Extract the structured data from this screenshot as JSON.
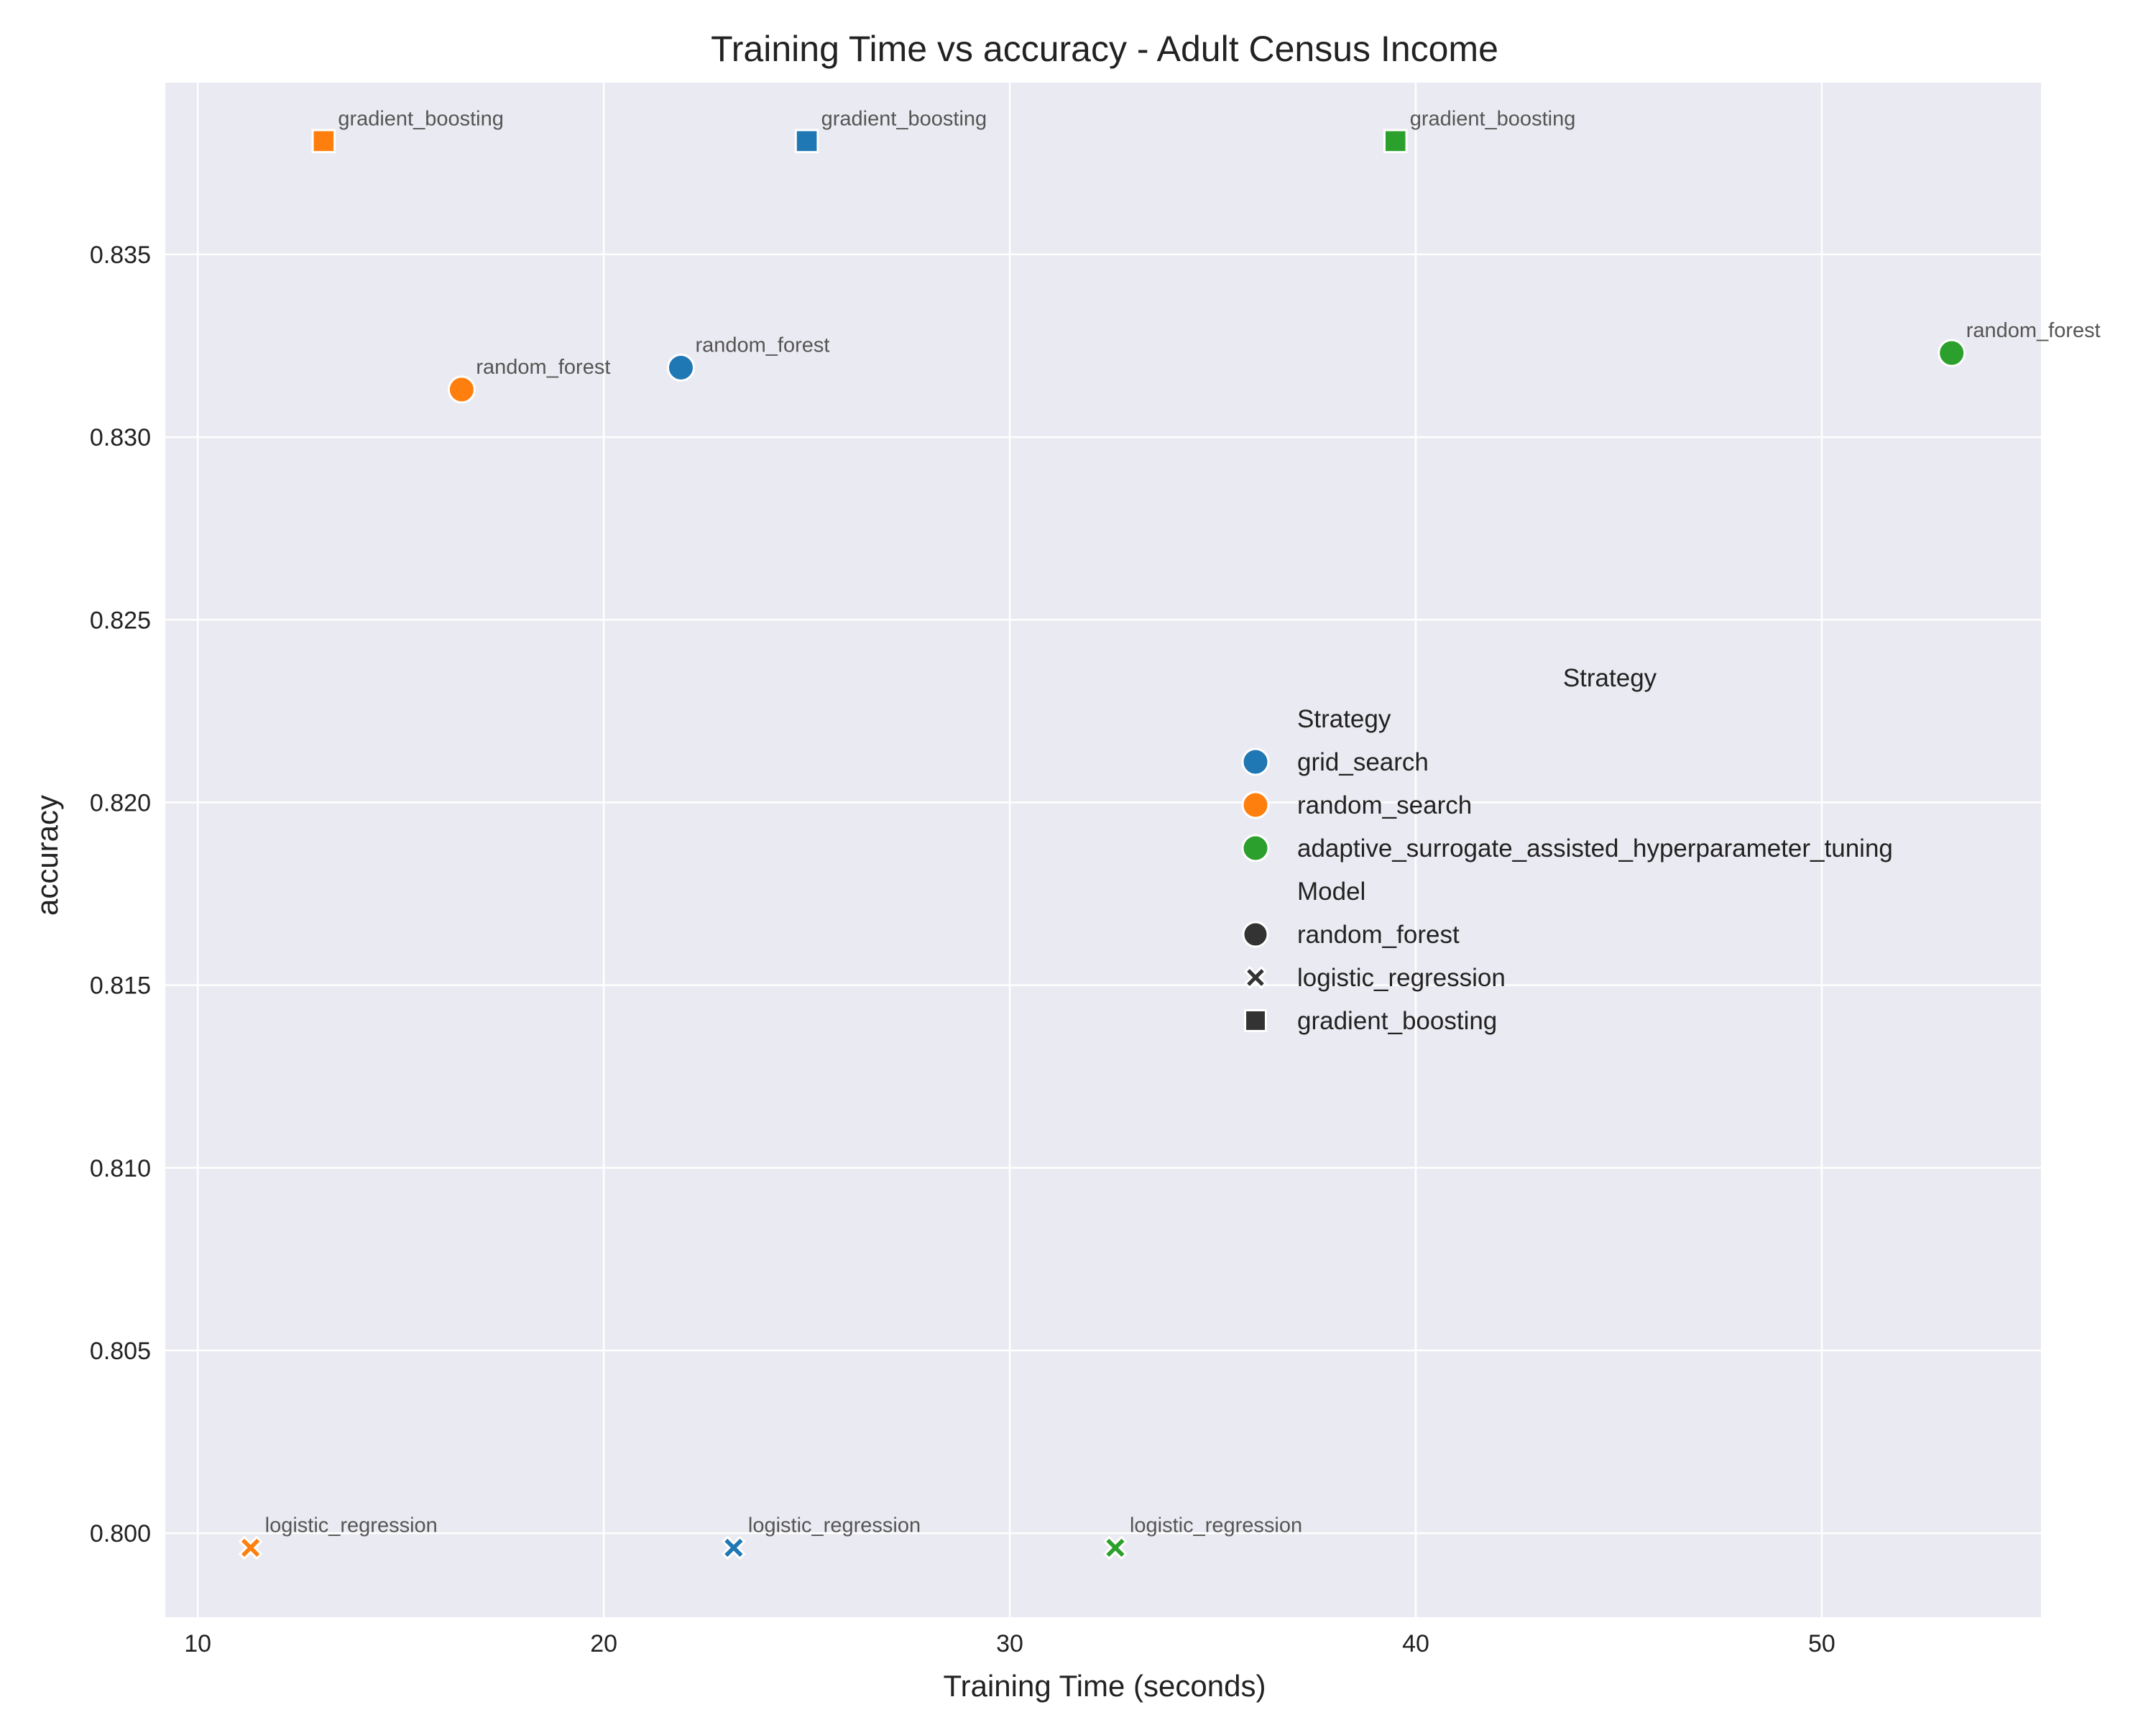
{
  "chart_data": {
    "type": "scatter",
    "title": "Training Time vs accuracy - Adult Census Income",
    "xlabel": "Training Time (seconds)",
    "ylabel": "accuracy",
    "xlim": [
      9.2,
      55.4
    ],
    "ylim": [
      0.7977,
      0.8397
    ],
    "xticks": [
      10,
      20,
      30,
      40,
      50
    ],
    "yticks": [
      0.8,
      0.805,
      0.81,
      0.815,
      0.82,
      0.825,
      0.83,
      0.835
    ],
    "ytick_labels": [
      "0.800",
      "0.805",
      "0.810",
      "0.815",
      "0.820",
      "0.825",
      "0.830",
      "0.835"
    ],
    "grid": true,
    "legend_placement": "center-right",
    "legend": {
      "outer_title": "Strategy",
      "hue_title": "Strategy",
      "style_title": "Model",
      "strategies": [
        {
          "name": "grid_search",
          "color": "#1f77b4"
        },
        {
          "name": "random_search",
          "color": "#ff7f0e"
        },
        {
          "name": "adaptive_surrogate_assisted_hyperparameter_tuning",
          "color": "#2ca02c"
        }
      ],
      "models": [
        {
          "name": "random_forest",
          "marker": "circle"
        },
        {
          "name": "logistic_regression",
          "marker": "x"
        },
        {
          "name": "gradient_boosting",
          "marker": "square"
        }
      ]
    },
    "points": [
      {
        "strategy": "grid_search",
        "model": "random_forest",
        "x": 21.9,
        "y": 0.8319,
        "label": "random_forest"
      },
      {
        "strategy": "grid_search",
        "model": "logistic_regression",
        "x": 23.2,
        "y": 0.7996,
        "label": "logistic_regression"
      },
      {
        "strategy": "grid_search",
        "model": "gradient_boosting",
        "x": 25.0,
        "y": 0.8381,
        "label": "gradient_boosting"
      },
      {
        "strategy": "random_search",
        "model": "random_forest",
        "x": 16.5,
        "y": 0.8313,
        "label": "random_forest"
      },
      {
        "strategy": "random_search",
        "model": "logistic_regression",
        "x": 11.3,
        "y": 0.7996,
        "label": "logistic_regression"
      },
      {
        "strategy": "random_search",
        "model": "gradient_boosting",
        "x": 13.1,
        "y": 0.8381,
        "label": "gradient_boosting"
      },
      {
        "strategy": "adaptive_surrogate_assisted_hyperparameter_tuning",
        "model": "random_forest",
        "x": 53.2,
        "y": 0.8323,
        "label": "random_forest"
      },
      {
        "strategy": "adaptive_surrogate_assisted_hyperparameter_tuning",
        "model": "logistic_regression",
        "x": 32.6,
        "y": 0.7996,
        "label": "logistic_regression"
      },
      {
        "strategy": "adaptive_surrogate_assisted_hyperparameter_tuning",
        "model": "gradient_boosting",
        "x": 39.5,
        "y": 0.8381,
        "label": "gradient_boosting"
      }
    ],
    "colors": {
      "plot_background": "#eaeaf2",
      "grid": "#ffffff",
      "marker_edge": "#ffffff",
      "legend_marker_dark": "#333333"
    }
  }
}
